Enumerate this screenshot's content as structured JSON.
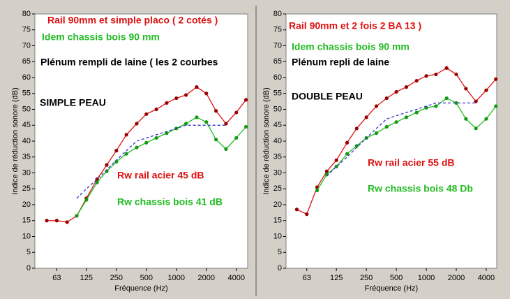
{
  "chart_data": [
    {
      "type": "line",
      "x_label": "Fréquence (Hz)",
      "y_label": "Indice de réduction sonore (dB)",
      "xlim": [
        38,
        5200
      ],
      "xticks": [
        63,
        125,
        250,
        500,
        1000,
        2000,
        4000
      ],
      "xscale": "log",
      "ylim": [
        0,
        80
      ],
      "yticks": [
        0,
        5,
        10,
        15,
        20,
        25,
        30,
        35,
        40,
        45,
        50,
        55,
        60,
        65,
        70,
        75,
        80
      ],
      "grid": false,
      "x": [
        50,
        63,
        80,
        100,
        125,
        160,
        200,
        250,
        315,
        400,
        500,
        630,
        800,
        1000,
        1250,
        1600,
        2000,
        2500,
        3150,
        4000,
        5000
      ],
      "series": [
        {
          "color": "#dd1111",
          "marker_color": "#990000",
          "markers": true,
          "dashed": false,
          "values": [
            15,
            15,
            14.5,
            16.5,
            22,
            28,
            32.5,
            37,
            42,
            45.5,
            48.5,
            50,
            52,
            53.5,
            54.5,
            57,
            55,
            49.5,
            45.5,
            49,
            53
          ]
        },
        {
          "color": "#22bb22",
          "marker_color": "#119911",
          "markers": true,
          "dashed": false,
          "values": [
            null,
            null,
            null,
            16.5,
            21.5,
            27,
            30.5,
            33.5,
            36,
            38,
            39.5,
            41,
            42.5,
            44,
            45.5,
            47.5,
            46,
            40.5,
            37.5,
            41,
            44.5
          ]
        },
        {
          "color": "#3333cc",
          "marker_color": "#3333cc",
          "markers": false,
          "dashed": true,
          "values": [
            null,
            null,
            null,
            22,
            25,
            28,
            31,
            34,
            37,
            40,
            41,
            42,
            43,
            44,
            45,
            45,
            45,
            45,
            45,
            null,
            null
          ]
        }
      ],
      "annotations": [
        {
          "text": "Rail 90mm et simple placo ( 2 cotés )",
          "color": "#dd1111"
        },
        {
          "text": "Idem chassis bois 90 mm",
          "color": "#22bb22"
        },
        {
          "text": "Plénum rempli de laine ( les 2 courbes",
          "color": "#000000"
        },
        {
          "text": "SIMPLE PEAU",
          "color": "#000000"
        },
        {
          "text": "Rw rail acier 45 dB",
          "color": "#dd1111"
        },
        {
          "text": "Rw chassis bois 41 dB",
          "color": "#22bb22"
        }
      ]
    },
    {
      "type": "line",
      "x_label": "Fréquence (Hz)",
      "y_label": "Indice de réduction sonore (dB)",
      "xlim": [
        39,
        5100
      ],
      "xticks": [
        63,
        125,
        250,
        500,
        1000,
        2000,
        4000
      ],
      "xscale": "log",
      "ylim": [
        0,
        80
      ],
      "yticks": [
        0,
        5,
        10,
        15,
        20,
        25,
        30,
        35,
        40,
        45,
        50,
        55,
        60,
        65,
        70,
        75,
        80
      ],
      "grid": false,
      "x": [
        50,
        63,
        80,
        100,
        125,
        160,
        200,
        250,
        315,
        400,
        500,
        630,
        800,
        1000,
        1250,
        1600,
        2000,
        2500,
        3150,
        4000,
        5000
      ],
      "series": [
        {
          "color": "#dd1111",
          "marker_color": "#990000",
          "markers": true,
          "dashed": false,
          "values": [
            18.5,
            17,
            25.5,
            30.5,
            34,
            39.5,
            44,
            47.5,
            51,
            53.5,
            55.5,
            57,
            59,
            60.5,
            61,
            63,
            61,
            56.5,
            52.5,
            56,
            59.5
          ]
        },
        {
          "color": "#22bb22",
          "marker_color": "#119911",
          "markers": true,
          "dashed": false,
          "values": [
            null,
            null,
            24.5,
            29.5,
            32,
            36,
            38.5,
            41,
            42.5,
            44.5,
            46,
            47.5,
            49,
            50.5,
            51,
            53.5,
            52,
            47,
            44,
            47,
            51
          ]
        },
        {
          "color": "#3333cc",
          "marker_color": "#3333cc",
          "markers": false,
          "dashed": true,
          "values": [
            null,
            null,
            null,
            29,
            32,
            35,
            38,
            41,
            44,
            47,
            48,
            49,
            50,
            51,
            52,
            52,
            52,
            52,
            52,
            null,
            null
          ]
        }
      ],
      "annotations": [
        {
          "text": "Rail 90mm et 2 fois 2 BA 13 )",
          "color": "#dd1111"
        },
        {
          "text": "Idem chassis bois 90 mm",
          "color": "#22bb22"
        },
        {
          "text": "Plénum repli de laine",
          "color": "#000000"
        },
        {
          "text": "DOUBLE PEAU",
          "color": "#000000"
        },
        {
          "text": "Rw rail acier 55 dB",
          "color": "#dd1111"
        },
        {
          "text": "Rw chassis bois 48 Db",
          "color": "#22bb22"
        }
      ]
    }
  ]
}
